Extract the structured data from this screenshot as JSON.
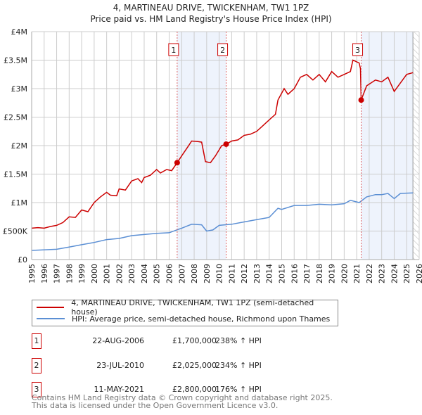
{
  "chart_data": {
    "type": "line",
    "title": "4, MARTINEAU DRIVE, TWICKENHAM, TW1 1PZ",
    "subtitle": "Price paid vs. HM Land Registry's House Price Index (HPI)",
    "xlim": [
      1995,
      2026
    ],
    "ylim": [
      0,
      4000000
    ],
    "grid": true,
    "y_ticks": [
      {
        "v": 0,
        "label": "£0"
      },
      {
        "v": 500000,
        "label": "£500K"
      },
      {
        "v": 1000000,
        "label": "£1M"
      },
      {
        "v": 1500000,
        "label": "£1.5M"
      },
      {
        "v": 2000000,
        "label": "£2M"
      },
      {
        "v": 2500000,
        "label": "£2.5M"
      },
      {
        "v": 3000000,
        "label": "£3M"
      },
      {
        "v": 3500000,
        "label": "£3.5M"
      },
      {
        "v": 4000000,
        "label": "£4M"
      }
    ],
    "x_ticks": [
      "1995",
      "1996",
      "1997",
      "1998",
      "1999",
      "2000",
      "2001",
      "2002",
      "2003",
      "2004",
      "2005",
      "2006",
      "2007",
      "2008",
      "2009",
      "2010",
      "2011",
      "2012",
      "2013",
      "2014",
      "2015",
      "2016",
      "2017",
      "2018",
      "2019",
      "2020",
      "2021",
      "2022",
      "2023",
      "2024",
      "2025",
      "2026"
    ],
    "series": [
      {
        "name": "4, MARTINEAU DRIVE, TWICKENHAM, TW1 1PZ (semi-detached house)",
        "color": "#cc0000",
        "x": [
          1995,
          1995.5,
          1996,
          1996.5,
          1997,
          1997.5,
          1998,
          1998.5,
          1999,
          1999.5,
          2000,
          2000.5,
          2001,
          2001.3,
          2001.8,
          2002,
          2002.5,
          2003,
          2003.5,
          2003.8,
          2004,
          2004.5,
          2005,
          2005.3,
          2005.8,
          2006.2,
          2006.64,
          2007,
          2007.5,
          2007.8,
          2008.3,
          2008.6,
          2008.9,
          2009.3,
          2009.7,
          2010.2,
          2010.56,
          2011,
          2011.5,
          2012,
          2012.5,
          2013,
          2013.5,
          2014,
          2014.5,
          2014.7,
          2015.2,
          2015.5,
          2016,
          2016.5,
          2017,
          2017.5,
          2018,
          2018.5,
          2019,
          2019.5,
          2020,
          2020.5,
          2020.7,
          2021.2,
          2021.3,
          2021.36,
          2021.8,
          2022.5,
          2023,
          2023.5,
          2024,
          2024.5,
          2025,
          2025.5
        ],
        "y": [
          550000,
          560000,
          550000,
          580000,
          600000,
          650000,
          750000,
          740000,
          870000,
          840000,
          1000000,
          1100000,
          1180000,
          1130000,
          1120000,
          1240000,
          1220000,
          1380000,
          1420000,
          1350000,
          1440000,
          1480000,
          1580000,
          1520000,
          1580000,
          1560000,
          1700000,
          1820000,
          1980000,
          2080000,
          2070000,
          2060000,
          1720000,
          1700000,
          1820000,
          2000000,
          2025000,
          2080000,
          2100000,
          2180000,
          2200000,
          2250000,
          2350000,
          2450000,
          2550000,
          2800000,
          3000000,
          2900000,
          3000000,
          3200000,
          3250000,
          3150000,
          3250000,
          3120000,
          3300000,
          3200000,
          3250000,
          3300000,
          3500000,
          3450000,
          3350000,
          2800000,
          3050000,
          3150000,
          3120000,
          3200000,
          2950000,
          3100000,
          3250000,
          3280000
        ]
      },
      {
        "name": "HPI: Average price, semi-detached house, Richmond upon Thames",
        "color": "#5b8fd4",
        "x": [
          1995,
          1997,
          1998,
          1999,
          2000,
          2001,
          2002,
          2003,
          2004,
          2005,
          2006,
          2007,
          2007.8,
          2008.6,
          2009,
          2009.5,
          2010,
          2011,
          2012,
          2013,
          2014,
          2014.7,
          2015,
          2016,
          2017,
          2018,
          2019,
          2020,
          2020.5,
          2021.2,
          2021.8,
          2022.5,
          2023,
          2023.5,
          2024,
          2024.5,
          2025.5
        ],
        "y": [
          160000,
          180000,
          220000,
          260000,
          300000,
          350000,
          370000,
          420000,
          440000,
          460000,
          470000,
          550000,
          620000,
          610000,
          500000,
          520000,
          600000,
          620000,
          660000,
          700000,
          740000,
          900000,
          880000,
          950000,
          950000,
          970000,
          960000,
          980000,
          1040000,
          1000000,
          1100000,
          1140000,
          1140000,
          1160000,
          1070000,
          1160000,
          1170000
        ]
      }
    ],
    "sales": [
      {
        "num": "1",
        "x": 2006.64,
        "y": 1700000,
        "date": "22-AUG-2006",
        "price": "£1,700,000",
        "hpi": "238% ↑ HPI"
      },
      {
        "num": "2",
        "x": 2010.56,
        "y": 2025000,
        "date": "23-JUL-2010",
        "price": "£2,025,000",
        "hpi": "234% ↑ HPI"
      },
      {
        "num": "3",
        "x": 2021.36,
        "y": 2800000,
        "date": "11-MAY-2021",
        "price": "£2,800,000",
        "hpi": "176% ↑ HPI"
      }
    ],
    "shaded_ranges": [
      [
        2006.64,
        2010.56
      ],
      [
        2021.36,
        2025.5
      ]
    ],
    "forecast_from": 2025.5,
    "legend_position": "below"
  },
  "footer": {
    "line1": "Contains HM Land Registry data © Crown copyright and database right 2025.",
    "line2": "This data is licensed under the Open Government Licence v3.0."
  }
}
